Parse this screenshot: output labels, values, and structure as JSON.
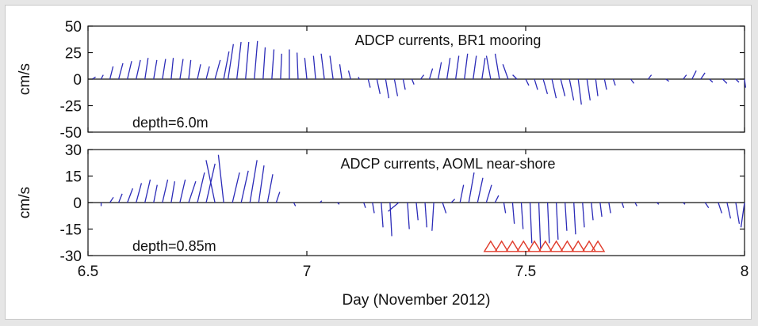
{
  "chart_data": {
    "type": "stick-plot",
    "xlabel": "Day (November 2012)",
    "xlim": [
      6.5,
      8
    ],
    "xticks": [
      "6.5",
      "7",
      "7.5",
      "8"
    ],
    "colors": {
      "sticks": "#2b2bb8",
      "markers": "#e03c2c",
      "axes": "#111111"
    },
    "panels": [
      {
        "title": "ADCP currents, BR1 mooring",
        "depth_label": "depth=6.0m",
        "ylabel": "cm/s",
        "ylim": [
          -50,
          50
        ],
        "yticks": [
          "50",
          "25",
          "0",
          "-25",
          "-50"
        ],
        "sticks": [
          {
            "t": 6.51,
            "u": 3,
            "v": 2
          },
          {
            "t": 6.53,
            "u": 2,
            "v": 4
          },
          {
            "t": 6.55,
            "u": 3,
            "v": 12
          },
          {
            "t": 6.57,
            "u": 4,
            "v": 15
          },
          {
            "t": 6.59,
            "u": 4,
            "v": 17
          },
          {
            "t": 6.61,
            "u": 4,
            "v": 18
          },
          {
            "t": 6.63,
            "u": 3,
            "v": 20
          },
          {
            "t": 6.65,
            "u": 3,
            "v": 18
          },
          {
            "t": 6.67,
            "u": 3,
            "v": 19
          },
          {
            "t": 6.69,
            "u": 2,
            "v": 20
          },
          {
            "t": 6.71,
            "u": 3,
            "v": 19
          },
          {
            "t": 6.73,
            "u": 2,
            "v": 18
          },
          {
            "t": 6.75,
            "u": 3,
            "v": 14
          },
          {
            "t": 6.77,
            "u": 3,
            "v": 12
          },
          {
            "t": 6.79,
            "u": 5,
            "v": 18
          },
          {
            "t": 6.81,
            "u": 5,
            "v": 26
          },
          {
            "t": 6.82,
            "u": 5,
            "v": 33
          },
          {
            "t": 6.84,
            "u": 4,
            "v": 35
          },
          {
            "t": 6.86,
            "u": 3,
            "v": 35
          },
          {
            "t": 6.88,
            "u": 3,
            "v": 36
          },
          {
            "t": 6.9,
            "u": 2,
            "v": 30
          },
          {
            "t": 6.92,
            "u": 2,
            "v": 28
          },
          {
            "t": 6.94,
            "u": 1,
            "v": 24
          },
          {
            "t": 6.96,
            "u": 0,
            "v": 28
          },
          {
            "t": 6.98,
            "u": -1,
            "v": 25
          },
          {
            "t": 7.0,
            "u": -2,
            "v": 20
          },
          {
            "t": 7.02,
            "u": -2,
            "v": 22
          },
          {
            "t": 7.04,
            "u": -3,
            "v": 24
          },
          {
            "t": 7.06,
            "u": -3,
            "v": 22
          },
          {
            "t": 7.08,
            "u": -2,
            "v": 14
          },
          {
            "t": 7.1,
            "u": -2,
            "v": 8
          },
          {
            "t": 7.12,
            "u": -1,
            "v": 2
          },
          {
            "t": 7.14,
            "u": 2,
            "v": -8
          },
          {
            "t": 7.16,
            "u": 3,
            "v": -14
          },
          {
            "t": 7.18,
            "u": 3,
            "v": -18
          },
          {
            "t": 7.2,
            "u": 3,
            "v": -16
          },
          {
            "t": 7.22,
            "u": 2,
            "v": -10
          },
          {
            "t": 7.24,
            "u": 2,
            "v": -5
          },
          {
            "t": 7.26,
            "u": 3,
            "v": 4
          },
          {
            "t": 7.28,
            "u": 3,
            "v": 10
          },
          {
            "t": 7.3,
            "u": 3,
            "v": 16
          },
          {
            "t": 7.32,
            "u": 3,
            "v": 20
          },
          {
            "t": 7.34,
            "u": 3,
            "v": 22
          },
          {
            "t": 7.36,
            "u": 3,
            "v": 24
          },
          {
            "t": 7.38,
            "u": 3,
            "v": 22
          },
          {
            "t": 7.4,
            "u": 3,
            "v": 20
          },
          {
            "t": 7.42,
            "u": -4,
            "v": 22
          },
          {
            "t": 7.44,
            "u": -4,
            "v": 24
          },
          {
            "t": 7.46,
            "u": -5,
            "v": 14
          },
          {
            "t": 7.48,
            "u": -4,
            "v": 4
          },
          {
            "t": 7.5,
            "u": 3,
            "v": -6
          },
          {
            "t": 7.52,
            "u": 3,
            "v": -10
          },
          {
            "t": 7.54,
            "u": 4,
            "v": -14
          },
          {
            "t": 7.56,
            "u": 4,
            "v": -18
          },
          {
            "t": 7.58,
            "u": 4,
            "v": -16
          },
          {
            "t": 7.6,
            "u": 4,
            "v": -20
          },
          {
            "t": 7.62,
            "u": 3,
            "v": -24
          },
          {
            "t": 7.64,
            "u": 3,
            "v": -20
          },
          {
            "t": 7.66,
            "u": 2,
            "v": -16
          },
          {
            "t": 7.68,
            "u": 2,
            "v": -10
          },
          {
            "t": 7.7,
            "u": 2,
            "v": -6
          },
          {
            "t": 7.74,
            "u": 3,
            "v": -4
          },
          {
            "t": 7.78,
            "u": 3,
            "v": 4
          },
          {
            "t": 7.82,
            "u": 3,
            "v": -2
          },
          {
            "t": 7.86,
            "u": 3,
            "v": 4
          },
          {
            "t": 7.88,
            "u": 4,
            "v": 8
          },
          {
            "t": 7.9,
            "u": 4,
            "v": 6
          },
          {
            "t": 7.92,
            "u": 3,
            "v": -3
          },
          {
            "t": 7.95,
            "u": 4,
            "v": -4
          },
          {
            "t": 7.98,
            "u": 3,
            "v": -3
          },
          {
            "t": 8.0,
            "u": 1,
            "v": -8
          }
        ]
      },
      {
        "title": "ADCP currents, AOML near-shore",
        "depth_label": "depth=0.85m",
        "ylabel": "cm/s",
        "ylim": [
          -30,
          30
        ],
        "yticks": [
          "30",
          "15",
          "0",
          "-15",
          "-30"
        ],
        "sticks": [
          {
            "t": 6.53,
            "u": 0,
            "v": -2
          },
          {
            "t": 6.55,
            "u": 2,
            "v": 3
          },
          {
            "t": 6.57,
            "u": 2,
            "v": 5
          },
          {
            "t": 6.59,
            "u": 3,
            "v": 8
          },
          {
            "t": 6.61,
            "u": 3,
            "v": 11
          },
          {
            "t": 6.63,
            "u": 3,
            "v": 13
          },
          {
            "t": 6.65,
            "u": 2,
            "v": 10
          },
          {
            "t": 6.67,
            "u": 3,
            "v": 13
          },
          {
            "t": 6.69,
            "u": 2,
            "v": 12
          },
          {
            "t": 6.71,
            "u": 3,
            "v": 13
          },
          {
            "t": 6.73,
            "u": 4,
            "v": 12
          },
          {
            "t": 6.75,
            "u": 4,
            "v": 17
          },
          {
            "t": 6.77,
            "u": 5,
            "v": 22
          },
          {
            "t": 6.79,
            "u": -5,
            "v": 24
          },
          {
            "t": 6.81,
            "u": -3,
            "v": 27
          },
          {
            "t": 6.83,
            "u": 4,
            "v": 17
          },
          {
            "t": 6.85,
            "u": 4,
            "v": 18
          },
          {
            "t": 6.87,
            "u": 4,
            "v": 24
          },
          {
            "t": 6.89,
            "u": 3,
            "v": 21
          },
          {
            "t": 6.91,
            "u": 3,
            "v": 16
          },
          {
            "t": 6.93,
            "u": 2,
            "v": 6
          },
          {
            "t": 6.97,
            "u": 1,
            "v": -2
          },
          {
            "t": 7.03,
            "u": 1,
            "v": 1
          },
          {
            "t": 7.07,
            "u": 1,
            "v": -1
          },
          {
            "t": 7.13,
            "u": 1,
            "v": -3
          },
          {
            "t": 7.15,
            "u": 1,
            "v": -6
          },
          {
            "t": 7.17,
            "u": 1,
            "v": -14
          },
          {
            "t": 7.19,
            "u": 1,
            "v": -19
          },
          {
            "t": 7.21,
            "u": -6,
            "v": -5
          },
          {
            "t": 7.23,
            "u": 1,
            "v": -15
          },
          {
            "t": 7.25,
            "u": 1,
            "v": -10
          },
          {
            "t": 7.27,
            "u": 1,
            "v": -14
          },
          {
            "t": 7.29,
            "u": -1,
            "v": -16
          },
          {
            "t": 7.31,
            "u": 2,
            "v": -6
          },
          {
            "t": 7.33,
            "u": 2,
            "v": 2
          },
          {
            "t": 7.35,
            "u": 2,
            "v": 10
          },
          {
            "t": 7.37,
            "u": 3,
            "v": 17
          },
          {
            "t": 7.39,
            "u": 3,
            "v": 14
          },
          {
            "t": 7.41,
            "u": 3,
            "v": 10
          },
          {
            "t": 7.43,
            "u": 2,
            "v": 4
          },
          {
            "t": 7.45,
            "u": 1,
            "v": -6
          },
          {
            "t": 7.47,
            "u": 1,
            "v": -12
          },
          {
            "t": 7.49,
            "u": 1,
            "v": -15
          },
          {
            "t": 7.51,
            "u": 1,
            "v": -23
          },
          {
            "t": 7.53,
            "u": 1,
            "v": -26
          },
          {
            "t": 7.55,
            "u": 1,
            "v": -23
          },
          {
            "t": 7.57,
            "u": 1,
            "v": -21
          },
          {
            "t": 7.59,
            "u": 1,
            "v": -16
          },
          {
            "t": 7.61,
            "u": 1,
            "v": -18
          },
          {
            "t": 7.63,
            "u": 1,
            "v": -14
          },
          {
            "t": 7.65,
            "u": 1,
            "v": -10
          },
          {
            "t": 7.67,
            "u": 1,
            "v": -8
          },
          {
            "t": 7.69,
            "u": 1,
            "v": -6
          },
          {
            "t": 7.72,
            "u": 1,
            "v": -3
          },
          {
            "t": 7.75,
            "u": 1,
            "v": -2
          },
          {
            "t": 7.8,
            "u": 1,
            "v": -1
          },
          {
            "t": 7.86,
            "u": 1,
            "v": -1
          },
          {
            "t": 7.91,
            "u": 2,
            "v": -3
          },
          {
            "t": 7.94,
            "u": 2,
            "v": -6
          },
          {
            "t": 7.96,
            "u": 2,
            "v": -9
          },
          {
            "t": 7.98,
            "u": 2,
            "v": -12
          },
          {
            "t": 8.0,
            "u": -2,
            "v": -14
          }
        ],
        "markers": {
          "shape": "triangle",
          "y": -25,
          "t": [
            7.42,
            7.445,
            7.47,
            7.495,
            7.52,
            7.545,
            7.57,
            7.595,
            7.62,
            7.645,
            7.665
          ]
        }
      }
    ]
  }
}
